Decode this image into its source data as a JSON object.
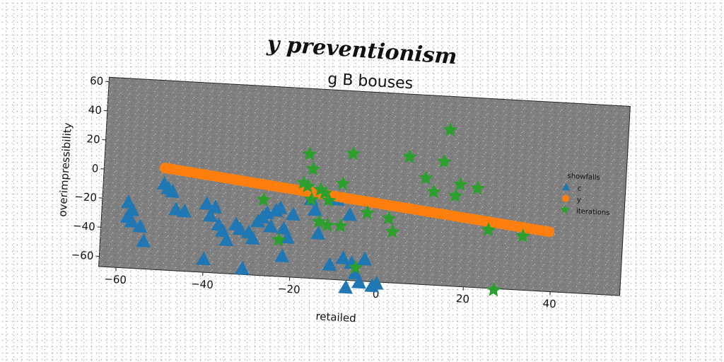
{
  "suptitle": "y preventionism",
  "chart_data": {
    "type": "scatter",
    "title": "g B bouses",
    "xlabel": "retailed",
    "ylabel": "overimpressibility",
    "xlim": [
      -64,
      56
    ],
    "ylim": [
      -67,
      63
    ],
    "xticks": [
      "−60",
      "−40",
      "−20",
      "0",
      "20",
      "40"
    ],
    "xtick_values": [
      -60,
      -40,
      -20,
      0,
      20,
      40
    ],
    "yticks": [
      "−60",
      "−40",
      "−20",
      "0",
      "20",
      "40",
      "60"
    ],
    "ytick_values": [
      -60,
      -40,
      -20,
      0,
      20,
      40,
      60
    ],
    "grid": false,
    "legend": {
      "title": "showfalls",
      "placement": "right"
    },
    "plot_bg": "#808080",
    "series": [
      {
        "name": "c",
        "marker": "triangle",
        "color": "#1f77b4",
        "points": [
          [
            -50,
            -8
          ],
          [
            -49,
            -11
          ],
          [
            -48,
            -13
          ],
          [
            -58,
            -22
          ],
          [
            -57,
            -27
          ],
          [
            -58,
            -32
          ],
          [
            -57,
            -35
          ],
          [
            -55,
            -38
          ],
          [
            -54,
            -48
          ],
          [
            -47,
            -25
          ],
          [
            -45,
            -26
          ],
          [
            -40,
            -20
          ],
          [
            -38,
            -22
          ],
          [
            -39,
            -28
          ],
          [
            -37,
            -34
          ],
          [
            -36,
            -38
          ],
          [
            -35,
            -44
          ],
          [
            -33,
            -33
          ],
          [
            -32,
            -36
          ],
          [
            -30,
            -38
          ],
          [
            -29,
            -42
          ],
          [
            -28,
            -30
          ],
          [
            -27,
            -27
          ],
          [
            -26,
            -24
          ],
          [
            -25,
            -33
          ],
          [
            -24,
            -22
          ],
          [
            -23,
            -20
          ],
          [
            -22,
            -34
          ],
          [
            -21,
            -40
          ],
          [
            -22,
            -53
          ],
          [
            -20,
            -24
          ],
          [
            -40,
            -58
          ],
          [
            -31,
            -63
          ],
          [
            -16,
            -13
          ],
          [
            -15,
            -20
          ],
          [
            -14,
            -36
          ],
          [
            -11,
            -11
          ],
          [
            -10,
            -12
          ],
          [
            -11,
            -57
          ],
          [
            -8,
            -52
          ],
          [
            -7,
            -72
          ],
          [
            -6,
            -55
          ],
          [
            -5,
            -62
          ],
          [
            -4,
            -68
          ],
          [
            -3,
            -52
          ],
          [
            -1,
            -70
          ],
          [
            0,
            -68
          ],
          [
            -7,
            -22
          ]
        ]
      },
      {
        "name": "y",
        "marker": "circle",
        "color": "#ff7f0e",
        "line_from": [
          -50,
          3
        ],
        "line_to": [
          39,
          -26
        ],
        "count": 90
      },
      {
        "name": "iterations",
        "marker": "star",
        "color": "#2ca02c",
        "points": [
          [
            15,
            40
          ],
          [
            -17,
            18
          ],
          [
            -7,
            20
          ],
          [
            6,
            20
          ],
          [
            14,
            18
          ],
          [
            -16,
            8
          ],
          [
            -18,
            -2
          ],
          [
            -17,
            -4
          ],
          [
            -9,
            -1
          ],
          [
            -14,
            -6
          ],
          [
            -13,
            -8
          ],
          [
            -16,
            -13
          ],
          [
            -12,
            -13
          ],
          [
            10,
            6
          ],
          [
            18,
            3
          ],
          [
            22,
            1
          ],
          [
            12,
            -3
          ],
          [
            17,
            -5
          ],
          [
            -27,
            -15
          ],
          [
            -3,
            -20
          ],
          [
            2,
            -23
          ],
          [
            -14,
            -28
          ],
          [
            -12,
            -30
          ],
          [
            -9,
            -30
          ],
          [
            3,
            -32
          ],
          [
            25,
            -27
          ],
          [
            33,
            -30
          ],
          [
            -23,
            -42
          ],
          [
            -5,
            -58
          ],
          [
            27,
            -68
          ]
        ]
      }
    ]
  }
}
